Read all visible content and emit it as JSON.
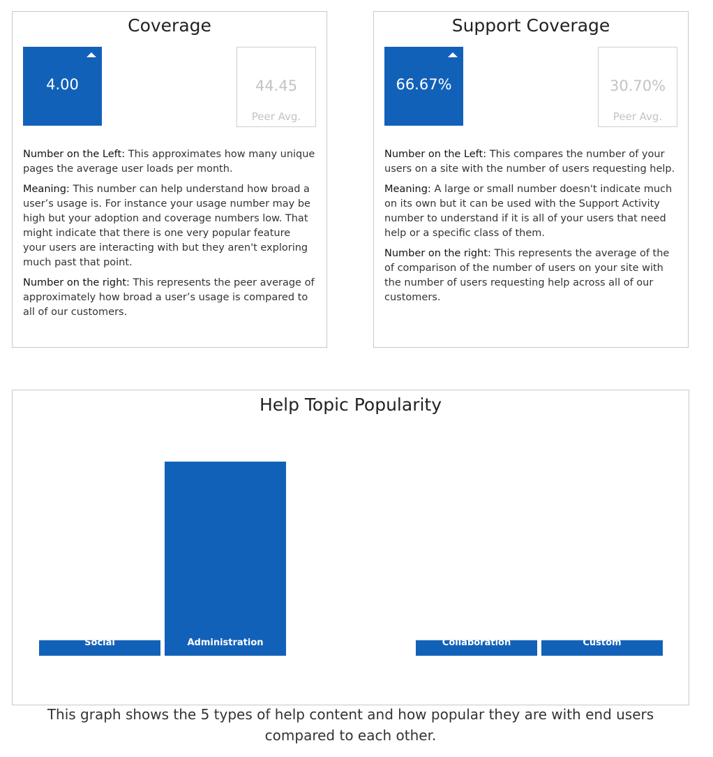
{
  "coverage": {
    "title": "Coverage",
    "value": "4.00",
    "peer_value": "44.45",
    "peer_label": "Peer Avg.",
    "trend_icon": "triangle-up-icon",
    "left_heading": "Number on the Left:",
    "left_text": "This approximates how many unique pages the average user loads per month.",
    "meaning_heading": "Meaning:",
    "meaning_text": "This number can help understand how broad a user’s usage is. For instance your usage number may be high but your adoption and coverage numbers low. That might indicate that there is one very popular feature your users are interacting with but they aren't exploring much past that point.",
    "right_heading": "Number on the right:",
    "right_text": "This represents the peer average of approximately how broad a user’s usage is compared to all of our customers."
  },
  "support_coverage": {
    "title": "Support Coverage",
    "value": "66.67%",
    "peer_value": "30.70%",
    "peer_label": "Peer Avg.",
    "trend_icon": "triangle-up-icon",
    "left_heading": "Number on the Left:",
    "left_text": "This compares the number of your users on a site with the number of users requesting help.",
    "meaning_heading": "Meaning:",
    "meaning_text": "A large or small number doesn't indicate much on its own but it can be used with the Support Activity number to understand if it is all of your users that need help or a specific class of them.",
    "right_heading": "Number on the right:",
    "right_text": "This represents the average of the of comparison of the number of users on your site with the number of users requesting help across all of our customers."
  },
  "colors": {
    "accent": "#1261b8",
    "peer_text": "#c3c3c3"
  },
  "help_topic": {
    "title": "Help Topic Popularity",
    "footer": "This graph shows the 5 types of help content and how popular they are with end users compared to each other."
  },
  "chart_data": {
    "type": "bar",
    "title": "Help Topic Popularity",
    "categories": [
      "Social",
      "Administration",
      "",
      "Collaboration",
      "Custom"
    ],
    "values": [
      8,
      100,
      0,
      8,
      8
    ],
    "ylim": [
      0,
      100
    ],
    "grid": false,
    "color": "#1261b8"
  }
}
